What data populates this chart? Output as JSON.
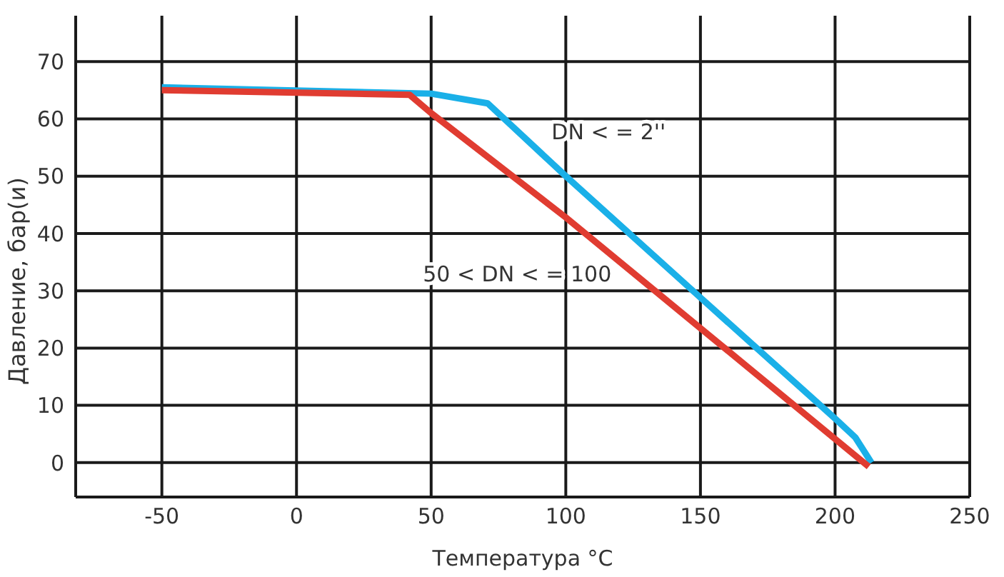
{
  "chart_data": {
    "type": "line",
    "xlabel": "Температура °C",
    "ylabel": "Давление, бар(и)",
    "xlim": [
      -82,
      250
    ],
    "xticks": [
      -50,
      0,
      50,
      100,
      150,
      200,
      250
    ],
    "ylim": [
      -6,
      78
    ],
    "yticks": [
      0,
      10,
      20,
      30,
      40,
      50,
      60,
      70
    ],
    "grid": true,
    "legend": false,
    "marker": "none",
    "line_style": "solid",
    "series": [
      {
        "name": "DN < = 2''",
        "color": "#1ab0e8",
        "x": [
          -50,
          50,
          71,
          100,
          150,
          200,
          207.5,
          213.5
        ],
        "values": [
          65.5,
          64.4,
          62.7,
          50,
          28.8,
          7.7,
          4.4,
          0
        ]
      },
      {
        "name": "50 < DN < = 100",
        "color": "#e03c31",
        "x": [
          -50,
          42,
          50,
          100,
          212.5
        ],
        "values": [
          65,
          64.2,
          61,
          42.8,
          -0.7
        ]
      }
    ]
  }
}
